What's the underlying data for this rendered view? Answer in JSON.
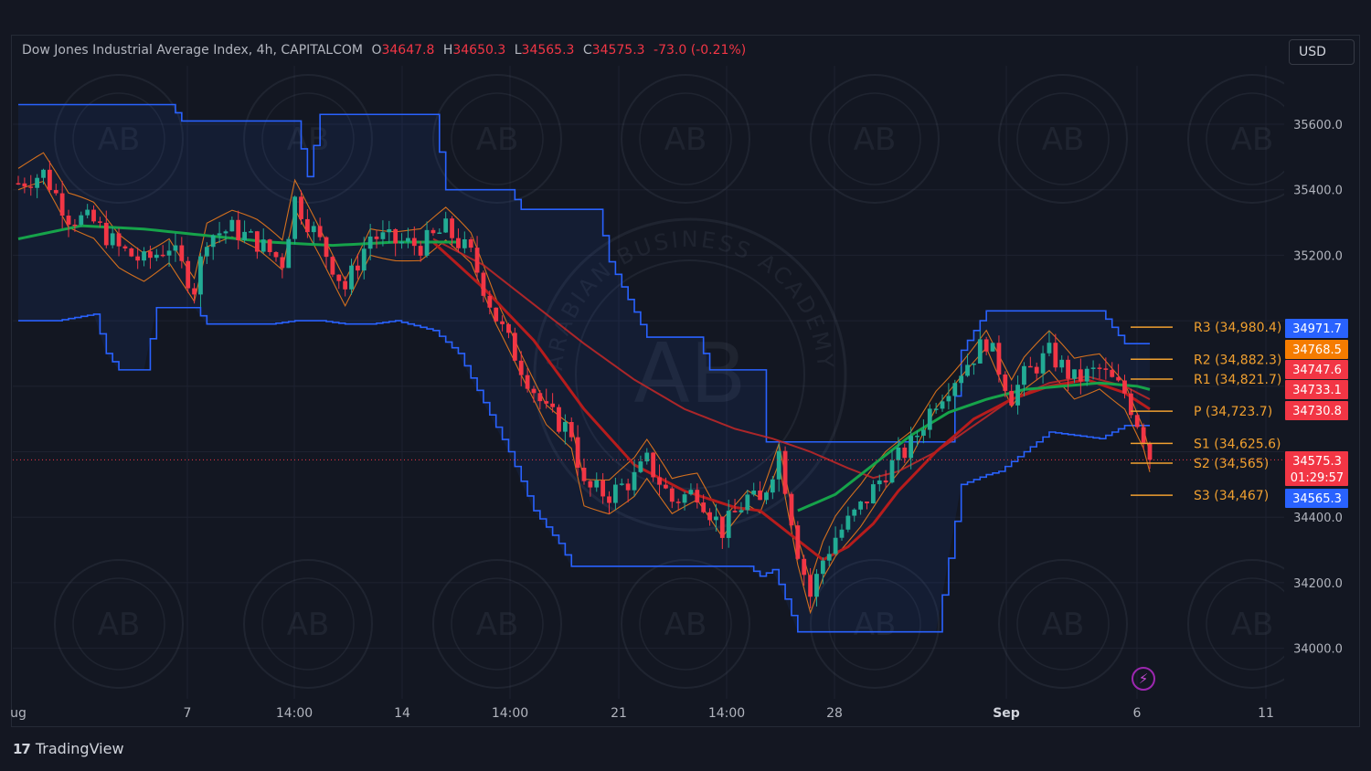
{
  "header": {
    "title": "Dow Jones Industrial Average Index, 4h, CAPITALCOM",
    "o_label": "O",
    "o": "34647.8",
    "h_label": "H",
    "h": "34650.3",
    "l_label": "L",
    "l": "34565.3",
    "c_label": "C",
    "c": "34575.3",
    "change": "-73.0 (-0.21%)"
  },
  "currency_button": "USD",
  "branding": {
    "logo_text": "17",
    "name": "TradingView"
  },
  "watermark": {
    "text": "ARABIAN BUSINESS ACADEMY",
    "monogram": "AB"
  },
  "icons": {
    "alert": "lightning-icon"
  },
  "colors": {
    "up": "#22ab94",
    "down": "#f23645",
    "channel": "#2962ff",
    "ma_green": "#16a34a",
    "ma_red": "#b71c1c",
    "pivot_line": "#f0a030",
    "label_blue": "#2962ff",
    "label_orange": "#f57c00",
    "label_red": "#f23645"
  },
  "chart_data": {
    "type": "candlestick",
    "timeframe": "4h",
    "y_range": [
      33900,
      35800
    ],
    "y_ticks": [
      34000,
      34200,
      34400,
      34600,
      34800,
      35000,
      35200,
      35400,
      35600
    ],
    "y_tick_labels": [
      "34000.0",
      "34200.0",
      "34400.0",
      "",
      "",
      "",
      "35200.0",
      "35400.0",
      "35600.0"
    ],
    "x_labels": [
      "ug",
      "7",
      "14:00",
      "14",
      "14:00",
      "21",
      "14:00",
      "28",
      "Sep",
      "6",
      "11"
    ],
    "current_price": 34575.3,
    "pivots": [
      {
        "name": "R3",
        "label": "R3 (34,980.4)",
        "value": 34980.4
      },
      {
        "name": "R2",
        "label": "R2 (34,882.3)",
        "value": 34882.3
      },
      {
        "name": "R1",
        "label": "R1 (34,821.7)",
        "value": 34821.7
      },
      {
        "name": "P",
        "label": "P (34,723.7)",
        "value": 34723.7
      },
      {
        "name": "S1",
        "label": "S1 (34,625.6)",
        "value": 34625.6
      },
      {
        "name": "S2",
        "label": "S2 (34,565)",
        "value": 34565
      },
      {
        "name": "S3",
        "label": "S3 (34,467)",
        "value": 34467
      }
    ],
    "price_labels": [
      {
        "text": "34971.7",
        "value": 34971.7,
        "color": "blue"
      },
      {
        "text": "34768.5",
        "value": 34768.5,
        "color": "orange"
      },
      {
        "text": "34747.6",
        "value": 34747.6,
        "color": "red"
      },
      {
        "text": "34733.1",
        "value": 34733.1,
        "color": "red"
      },
      {
        "text": "34730.8",
        "value": 34730.8,
        "color": "red"
      },
      {
        "text": "34575.3",
        "value": 34575.3,
        "color": "red",
        "countdown": "01:29:57"
      },
      {
        "text": "34565.3",
        "value": 34565.3,
        "color": "blue"
      }
    ],
    "close_path": [
      [
        0,
        35420
      ],
      [
        4,
        35450
      ],
      [
        8,
        35320
      ],
      [
        12,
        35300
      ],
      [
        16,
        35220
      ],
      [
        20,
        35180
      ],
      [
        24,
        35230
      ],
      [
        28,
        35100
      ],
      [
        30,
        35260
      ],
      [
        34,
        35280
      ],
      [
        38,
        35240
      ],
      [
        42,
        35180
      ],
      [
        44,
        35370
      ],
      [
        48,
        35240
      ],
      [
        52,
        35100
      ],
      [
        56,
        35260
      ],
      [
        60,
        35240
      ],
      [
        64,
        35230
      ],
      [
        68,
        35280
      ],
      [
        72,
        35200
      ],
      [
        76,
        35010
      ],
      [
        80,
        34860
      ],
      [
        84,
        34720
      ],
      [
        88,
        34660
      ],
      [
        90,
        34490
      ],
      [
        94,
        34470
      ],
      [
        98,
        34520
      ],
      [
        100,
        34570
      ],
      [
        104,
        34450
      ],
      [
        108,
        34480
      ],
      [
        112,
        34360
      ],
      [
        116,
        34460
      ],
      [
        118,
        34440
      ],
      [
        121,
        34600
      ],
      [
        122,
        34500
      ],
      [
        124,
        34300
      ],
      [
        126,
        34160
      ],
      [
        128,
        34270
      ],
      [
        130,
        34340
      ],
      [
        134,
        34430
      ],
      [
        138,
        34540
      ],
      [
        142,
        34620
      ],
      [
        146,
        34760
      ],
      [
        150,
        34850
      ],
      [
        154,
        34940
      ],
      [
        158,
        34770
      ],
      [
        160,
        34830
      ],
      [
        164,
        34900
      ],
      [
        168,
        34820
      ],
      [
        172,
        34850
      ],
      [
        176,
        34780
      ],
      [
        179,
        34650
      ],
      [
        180,
        34575
      ]
    ],
    "channel_upper": [
      [
        0,
        35660
      ],
      [
        24,
        35660
      ],
      [
        26,
        35610
      ],
      [
        44,
        35610
      ],
      [
        46,
        35440
      ],
      [
        48,
        35630
      ],
      [
        66,
        35630
      ],
      [
        68,
        35400
      ],
      [
        78,
        35400
      ],
      [
        80,
        35340
      ],
      [
        92,
        35340
      ],
      [
        94,
        35180
      ],
      [
        100,
        34950
      ],
      [
        108,
        34950
      ],
      [
        110,
        34850
      ],
      [
        118,
        34850
      ],
      [
        119,
        34630
      ],
      [
        123,
        34630
      ],
      [
        124,
        34630
      ],
      [
        126,
        34630
      ],
      [
        134,
        34630
      ],
      [
        138,
        34630
      ],
      [
        142,
        34630
      ],
      [
        148,
        34630
      ],
      [
        150,
        34910
      ],
      [
        154,
        35030
      ],
      [
        172,
        35030
      ],
      [
        176,
        34930
      ],
      [
        180,
        34930
      ]
    ],
    "channel_lower": [
      [
        0,
        35000
      ],
      [
        6,
        35000
      ],
      [
        12,
        35020
      ],
      [
        14,
        34900
      ],
      [
        16,
        34850
      ],
      [
        20,
        34850
      ],
      [
        22,
        35040
      ],
      [
        28,
        35040
      ],
      [
        30,
        34990
      ],
      [
        36,
        34990
      ],
      [
        40,
        34990
      ],
      [
        44,
        35000
      ],
      [
        48,
        35000
      ],
      [
        52,
        34990
      ],
      [
        56,
        34990
      ],
      [
        60,
        35000
      ],
      [
        62,
        34990
      ],
      [
        66,
        34970
      ],
      [
        70,
        34900
      ],
      [
        74,
        34750
      ],
      [
        78,
        34600
      ],
      [
        82,
        34420
      ],
      [
        86,
        34320
      ],
      [
        88,
        34250
      ],
      [
        92,
        34250
      ],
      [
        96,
        34250
      ],
      [
        100,
        34250
      ],
      [
        104,
        34250
      ],
      [
        108,
        34250
      ],
      [
        112,
        34250
      ],
      [
        116,
        34250
      ],
      [
        118,
        34220
      ],
      [
        120,
        34240
      ],
      [
        122,
        34150
      ],
      [
        124,
        34050
      ],
      [
        128,
        34050
      ],
      [
        132,
        34050
      ],
      [
        136,
        34050
      ],
      [
        140,
        34050
      ],
      [
        144,
        34050
      ],
      [
        146,
        34050
      ],
      [
        150,
        34500
      ],
      [
        154,
        34530
      ],
      [
        156,
        34540
      ],
      [
        160,
        34600
      ],
      [
        164,
        34660
      ],
      [
        168,
        34650
      ],
      [
        172,
        34640
      ],
      [
        176,
        34680
      ],
      [
        180,
        34680
      ]
    ],
    "ma_green_fast": [
      [
        0,
        35250
      ],
      [
        10,
        35290
      ],
      [
        20,
        35280
      ],
      [
        30,
        35260
      ],
      [
        40,
        35240
      ],
      [
        50,
        35230
      ],
      [
        60,
        35240
      ],
      [
        70,
        35240
      ]
    ],
    "ma_green_slow": [
      [
        124,
        34420
      ],
      [
        130,
        34470
      ],
      [
        136,
        34560
      ],
      [
        142,
        34650
      ],
      [
        148,
        34720
      ],
      [
        154,
        34760
      ],
      [
        160,
        34790
      ],
      [
        166,
        34800
      ],
      [
        172,
        34810
      ],
      [
        178,
        34800
      ],
      [
        180,
        34790
      ]
    ],
    "ma_red_fast": [
      [
        66,
        35240
      ],
      [
        74,
        35100
      ],
      [
        82,
        34940
      ],
      [
        90,
        34730
      ],
      [
        98,
        34560
      ],
      [
        106,
        34480
      ],
      [
        114,
        34430
      ],
      [
        118,
        34420
      ],
      [
        124,
        34330
      ],
      [
        128,
        34270
      ],
      [
        132,
        34310
      ],
      [
        136,
        34380
      ],
      [
        140,
        34480
      ],
      [
        146,
        34600
      ],
      [
        152,
        34700
      ],
      [
        158,
        34760
      ],
      [
        164,
        34800
      ],
      [
        170,
        34820
      ],
      [
        176,
        34780
      ],
      [
        180,
        34730
      ]
    ],
    "ma_red_slow": [
      [
        66,
        35250
      ],
      [
        74,
        35170
      ],
      [
        82,
        35050
      ],
      [
        90,
        34930
      ],
      [
        98,
        34820
      ],
      [
        106,
        34730
      ],
      [
        114,
        34670
      ],
      [
        120,
        34640
      ],
      [
        126,
        34600
      ],
      [
        132,
        34550
      ],
      [
        136,
        34520
      ],
      [
        140,
        34540
      ],
      [
        146,
        34600
      ],
      [
        152,
        34680
      ],
      [
        158,
        34760
      ],
      [
        164,
        34810
      ],
      [
        170,
        34830
      ],
      [
        176,
        34800
      ],
      [
        180,
        34760
      ]
    ]
  }
}
